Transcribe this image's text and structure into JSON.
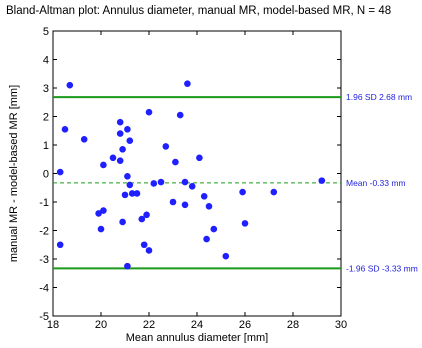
{
  "chart_data": {
    "type": "scatter",
    "title": "Bland-Altman plot: Annulus diameter, manual MR, model-based MR, N = 48",
    "xlabel": "Mean annulus diameter [mm]",
    "ylabel": "manual MR - model-based MR [mm]",
    "xlim": [
      18,
      30
    ],
    "ylim": [
      -5,
      5
    ],
    "x_ticks": [
      "18",
      "20",
      "22",
      "24",
      "26",
      "28",
      "30"
    ],
    "y_ticks": [
      "-5",
      "-4",
      "-3",
      "-2",
      "-1",
      "0",
      "1",
      "2",
      "3",
      "4",
      "5"
    ],
    "grid": false,
    "legend": "none",
    "colors": {
      "points": "#1f1fff",
      "limits_line": "#1a9a1a",
      "mean_line": "#1a9a1a",
      "ref_text": "#1f1fd9"
    },
    "reference_lines": [
      {
        "y": 2.68,
        "label": "1.96 SD 2.68 mm",
        "style": "solid"
      },
      {
        "y": -0.33,
        "label": "Mean -0.33 mm",
        "style": "dashed"
      },
      {
        "y": -3.33,
        "label": "-1.96 SD -3.33 mm",
        "style": "solid"
      }
    ],
    "points": [
      {
        "x": 18.3,
        "y": 0.05
      },
      {
        "x": 18.3,
        "y": -2.5
      },
      {
        "x": 18.5,
        "y": 1.55
      },
      {
        "x": 18.7,
        "y": 3.1
      },
      {
        "x": 19.3,
        "y": 1.2
      },
      {
        "x": 19.9,
        "y": -1.4
      },
      {
        "x": 20.0,
        "y": -1.95
      },
      {
        "x": 20.1,
        "y": 0.3
      },
      {
        "x": 20.1,
        "y": -1.3
      },
      {
        "x": 20.5,
        "y": 0.55
      },
      {
        "x": 20.8,
        "y": 1.8
      },
      {
        "x": 20.8,
        "y": 1.4
      },
      {
        "x": 20.8,
        "y": 0.45
      },
      {
        "x": 20.9,
        "y": 0.85
      },
      {
        "x": 20.9,
        "y": -1.7
      },
      {
        "x": 21.0,
        "y": -0.75
      },
      {
        "x": 21.1,
        "y": 1.55
      },
      {
        "x": 21.1,
        "y": -0.1
      },
      {
        "x": 21.1,
        "y": -3.25
      },
      {
        "x": 21.2,
        "y": 1.15
      },
      {
        "x": 21.2,
        "y": -0.4
      },
      {
        "x": 21.3,
        "y": -0.7
      },
      {
        "x": 21.5,
        "y": -0.7
      },
      {
        "x": 21.7,
        "y": -1.6
      },
      {
        "x": 21.8,
        "y": -2.5
      },
      {
        "x": 21.9,
        "y": -1.45
      },
      {
        "x": 22.0,
        "y": 2.15
      },
      {
        "x": 22.0,
        "y": -2.7
      },
      {
        "x": 22.2,
        "y": -0.35
      },
      {
        "x": 22.5,
        "y": -0.3
      },
      {
        "x": 22.7,
        "y": 0.95
      },
      {
        "x": 23.0,
        "y": -1.0
      },
      {
        "x": 23.1,
        "y": 0.4
      },
      {
        "x": 23.3,
        "y": 2.05
      },
      {
        "x": 23.5,
        "y": -0.3
      },
      {
        "x": 23.5,
        "y": -1.1
      },
      {
        "x": 23.6,
        "y": 3.15
      },
      {
        "x": 23.8,
        "y": -0.45
      },
      {
        "x": 24.1,
        "y": 0.55
      },
      {
        "x": 24.3,
        "y": -0.8
      },
      {
        "x": 24.4,
        "y": -2.3
      },
      {
        "x": 24.5,
        "y": -1.15
      },
      {
        "x": 24.7,
        "y": -1.95
      },
      {
        "x": 25.2,
        "y": -2.9
      },
      {
        "x": 25.9,
        "y": -0.65
      },
      {
        "x": 26.0,
        "y": -1.75
      },
      {
        "x": 27.2,
        "y": -0.65
      },
      {
        "x": 29.2,
        "y": -0.25
      }
    ]
  }
}
